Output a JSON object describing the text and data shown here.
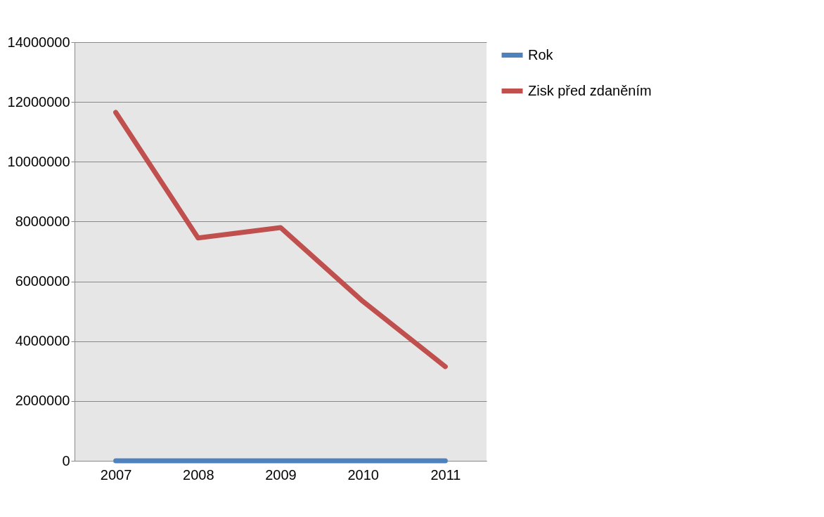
{
  "chart_data": {
    "type": "line",
    "categories": [
      "2007",
      "2008",
      "2009",
      "2010",
      "2011"
    ],
    "series": [
      {
        "name": "Rok",
        "color": "#4f81bd",
        "values": [
          0,
          0,
          0,
          0,
          0
        ]
      },
      {
        "name": "Zisk před zdaněním",
        "color": "#c0504d",
        "values": [
          11650000,
          7450000,
          7800000,
          5330000,
          3150000
        ]
      }
    ],
    "ylim": [
      0,
      14000000
    ],
    "yticks": [
      0,
      2000000,
      4000000,
      6000000,
      8000000,
      10000000,
      12000000,
      14000000
    ],
    "grid": "y",
    "legend": "right",
    "marker": "none",
    "line_style": "solid"
  }
}
